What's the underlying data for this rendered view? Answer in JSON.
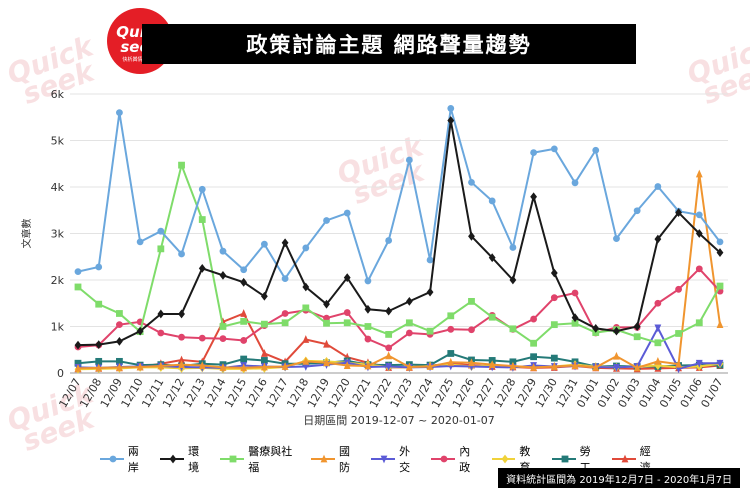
{
  "header": {
    "title": "政策討論主題 網路聲量趨勢",
    "logo_line1": "Quick",
    "logo_line2": "seek",
    "logo_sub": "快析輿情數據庫"
  },
  "footnote": "資料統計區間為 2019年12月7日 - 2020年1月7日",
  "watermark": [
    "Quick",
    "seek"
  ],
  "chart_data": {
    "type": "line",
    "title": "政策討論主題 網路聲量趨勢",
    "xlabel": "日期區間 2019-12-07 ~ 2020-01-07",
    "ylabel": "文章數",
    "ylim": [
      0,
      6000
    ],
    "yticks": [
      "0",
      "1k",
      "2k",
      "3k",
      "4k",
      "5k",
      "6k"
    ],
    "grid": true,
    "legend_position": "bottom",
    "categories": [
      "12/07",
      "12/08",
      "12/09",
      "12/10",
      "12/11",
      "12/12",
      "12/13",
      "12/14",
      "12/15",
      "12/16",
      "12/17",
      "12/18",
      "12/19",
      "12/20",
      "12/21",
      "12/22",
      "12/23",
      "12/24",
      "12/25",
      "12/26",
      "12/27",
      "12/28",
      "12/29",
      "12/30",
      "12/31",
      "01/01",
      "01/02",
      "01/03",
      "01/04",
      "01/05",
      "01/06",
      "01/07"
    ],
    "series": [
      {
        "name": "兩岸",
        "color": "#6aa7dd",
        "marker": "circle",
        "values": [
          2180,
          2280,
          5600,
          2820,
          3050,
          2560,
          3950,
          2620,
          2220,
          2770,
          2030,
          2690,
          3280,
          3440,
          1980,
          2850,
          4580,
          2430,
          5690,
          4100,
          3700,
          2700,
          4740,
          4820,
          4090,
          4790,
          2890,
          3490,
          4010,
          3480,
          3400,
          2820
        ]
      },
      {
        "name": "環境",
        "color": "#1a1a1a",
        "marker": "diamond",
        "values": [
          600,
          610,
          680,
          900,
          1270,
          1270,
          2250,
          2100,
          1950,
          1650,
          2800,
          1850,
          1480,
          2050,
          1370,
          1330,
          1540,
          1740,
          5430,
          2940,
          2480,
          2000,
          3790,
          2150,
          1190,
          960,
          900,
          1000,
          2880,
          3450,
          3000,
          2590
        ]
      },
      {
        "name": "醫療與社福",
        "color": "#7fdc6a",
        "marker": "square",
        "values": [
          1850,
          1480,
          1280,
          890,
          2670,
          4470,
          3300,
          1000,
          1110,
          1050,
          1080,
          1400,
          1070,
          1080,
          1000,
          830,
          1080,
          900,
          1230,
          1540,
          1200,
          950,
          640,
          1040,
          1070,
          870,
          930,
          780,
          650,
          850,
          1080,
          1870
        ]
      },
      {
        "name": "國防",
        "color": "#f0952f",
        "marker": "triangle-up",
        "values": [
          100,
          110,
          120,
          130,
          150,
          180,
          160,
          120,
          110,
          130,
          140,
          250,
          220,
          160,
          150,
          370,
          130,
          140,
          230,
          220,
          180,
          150,
          120,
          140,
          160,
          120,
          360,
          110,
          250,
          190,
          4280,
          1040
        ]
      },
      {
        "name": "外交",
        "color": "#5b5bd6",
        "marker": "triangle-down",
        "values": [
          120,
          110,
          130,
          140,
          150,
          130,
          120,
          110,
          160,
          140,
          130,
          140,
          180,
          220,
          130,
          140,
          120,
          130,
          150,
          140,
          130,
          120,
          160,
          140,
          150,
          130,
          120,
          140,
          970,
          90,
          210,
          210
        ]
      },
      {
        "name": "內政",
        "color": "#e0436b",
        "marker": "circle",
        "values": [
          560,
          600,
          1040,
          1100,
          860,
          770,
          750,
          740,
          700,
          1020,
          1280,
          1350,
          1180,
          1300,
          730,
          540,
          860,
          830,
          940,
          930,
          1240,
          940,
          1160,
          1620,
          1720,
          860,
          980,
          980,
          1500,
          1800,
          2240,
          1760
        ]
      },
      {
        "name": "教育",
        "color": "#f0d23a",
        "marker": "diamond",
        "values": [
          80,
          90,
          100,
          120,
          120,
          100,
          110,
          90,
          90,
          100,
          130,
          260,
          250,
          220,
          180,
          130,
          120,
          150,
          180,
          140,
          160,
          130,
          140,
          140,
          180,
          140,
          120,
          140,
          160,
          120,
          140,
          200
        ]
      },
      {
        "name": "勞工",
        "color": "#247a78",
        "marker": "square",
        "values": [
          210,
          250,
          250,
          170,
          180,
          150,
          200,
          180,
          300,
          270,
          200,
          200,
          220,
          260,
          180,
          170,
          180,
          170,
          420,
          280,
          270,
          240,
          350,
          320,
          240,
          140,
          150,
          140,
          140,
          160,
          170,
          170
        ]
      },
      {
        "name": "經濟",
        "color": "#e04a3a",
        "marker": "triangle-up",
        "values": [
          90,
          100,
          110,
          130,
          200,
          280,
          240,
          1100,
          1280,
          420,
          240,
          720,
          620,
          340,
          220,
          120,
          120,
          160,
          200,
          170,
          140,
          130,
          110,
          120,
          150,
          110,
          100,
          90,
          100,
          110,
          120,
          160
        ]
      }
    ]
  }
}
